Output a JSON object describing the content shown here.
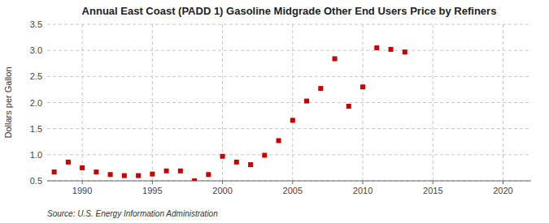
{
  "chart_data": {
    "type": "scatter",
    "title": "Annual East Coast (PADD 1) Gasoline Midgrade Other End Users Price by Refiners",
    "y_label": "Dollars per Gallon",
    "source": "Source: U.S. Energy Information Administration",
    "color": "#cc0000",
    "marker": "square",
    "x": [
      1988,
      1989,
      1990,
      1991,
      1992,
      1993,
      1994,
      1995,
      1996,
      1997,
      1998,
      1999,
      2000,
      2001,
      2002,
      2003,
      2004,
      2005,
      2006,
      2007,
      2008,
      2009,
      2010,
      2011,
      2012,
      2013
    ],
    "values": [
      0.67,
      0.86,
      0.75,
      0.67,
      0.62,
      0.6,
      0.6,
      0.63,
      0.69,
      0.69,
      0.5,
      0.62,
      0.97,
      0.86,
      0.81,
      0.99,
      1.27,
      1.66,
      2.03,
      2.27,
      2.84,
      1.93,
      2.3,
      3.05,
      3.02,
      2.97
    ],
    "xlim": [
      1987.5,
      2022
    ],
    "ylim": [
      0.5,
      3.5
    ],
    "xticks": [
      1990,
      1995,
      2000,
      2005,
      2010,
      2015,
      2020
    ],
    "yticks": [
      0.5,
      {
        "value": 1.0,
        "label": "1.0"
      },
      1.5,
      {
        "value": 2.0,
        "label": "2.0"
      },
      2.5,
      {
        "value": 3.0,
        "label": "3.0"
      },
      3.5
    ],
    "grid": true
  }
}
